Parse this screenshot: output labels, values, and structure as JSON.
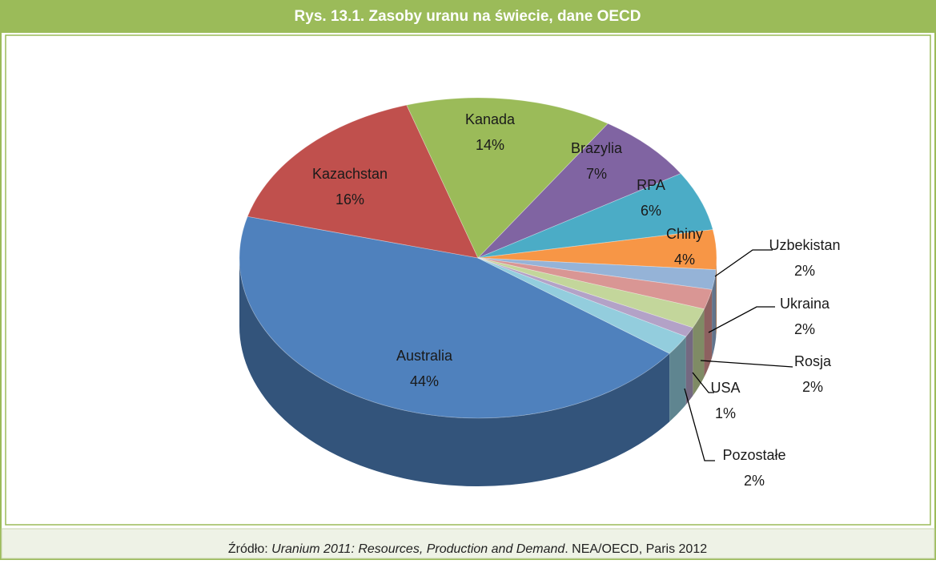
{
  "chart_data": {
    "type": "pie",
    "title": "Rys. 13.1. Zasoby uranu na świecie, dane OECD",
    "categories": [
      "Australia",
      "Kazachstan",
      "Kanada",
      "Brazylia",
      "RPA",
      "Chiny",
      "Uzbekistan",
      "Ukraina",
      "Rosja",
      "USA",
      "Pozostałe"
    ],
    "values": [
      44,
      16,
      14,
      7,
      6,
      4,
      2,
      2,
      2,
      1,
      2
    ],
    "value_labels": [
      "44%",
      "16%",
      "14%",
      "7%",
      "6%",
      "4%",
      "2%",
      "2%",
      "2%",
      "1%",
      "2%"
    ],
    "colors": [
      "#4f81bd",
      "#c0504d",
      "#9bbb59",
      "#8064a2",
      "#4bacc6",
      "#f79646",
      "#95b3d7",
      "#d99694",
      "#c3d69b",
      "#b3a2c7",
      "#93cddd"
    ],
    "source": {
      "prefix": "Źródło: ",
      "title": "Uranium 2011: Resources, Production and Demand",
      "suffix": ". NEA/OECD, Paris 2012"
    }
  }
}
